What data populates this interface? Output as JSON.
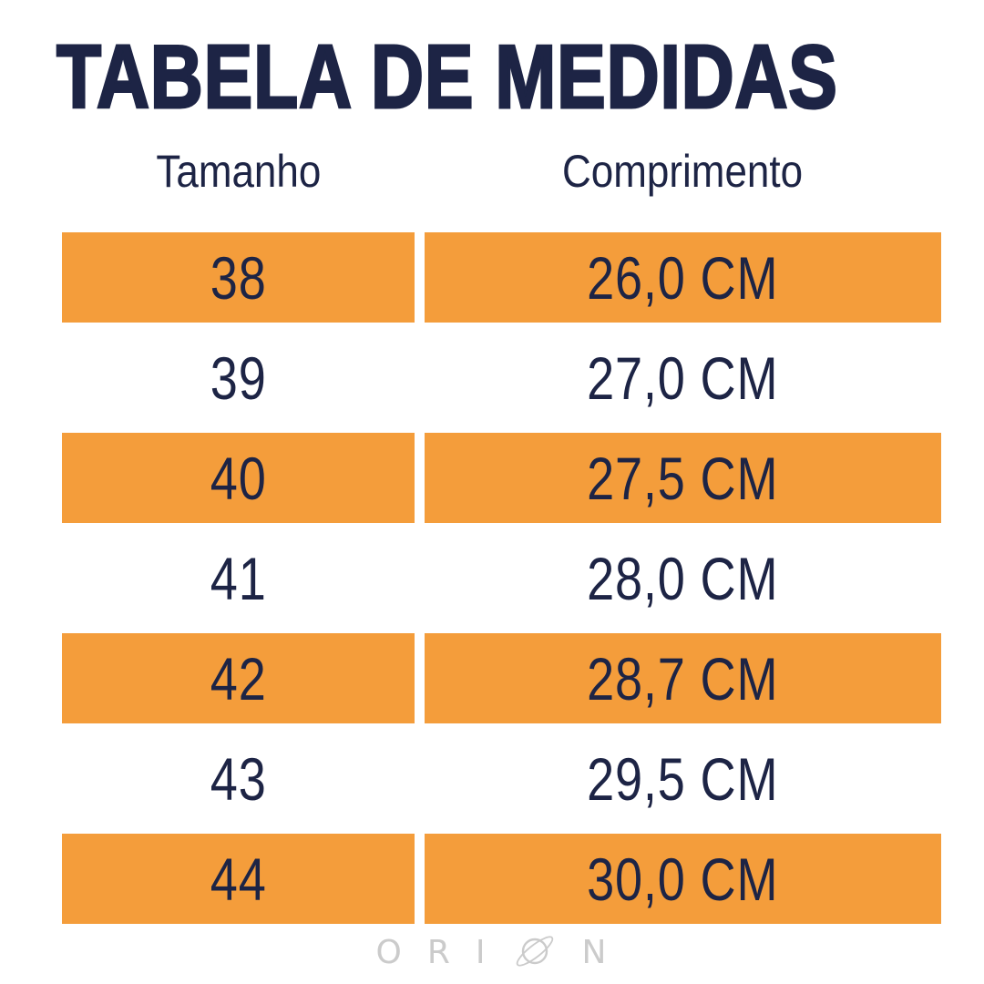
{
  "title": "TABELA DE MEDIDAS",
  "columns": {
    "size_label": "Tamanho",
    "length_label": "Comprimento"
  },
  "rows": [
    {
      "size": "38",
      "length": "26,0 CM",
      "highlight": true
    },
    {
      "size": "39",
      "length": "27,0 CM",
      "highlight": false
    },
    {
      "size": "40",
      "length": "27,5 CM",
      "highlight": true
    },
    {
      "size": "41",
      "length": "28,0 CM",
      "highlight": false
    },
    {
      "size": "42",
      "length": "28,7 CM",
      "highlight": true
    },
    {
      "size": "43",
      "length": "29,5 CM",
      "highlight": false
    },
    {
      "size": "44",
      "length": "30,0 CM",
      "highlight": true
    }
  ],
  "brand": {
    "name": "ORION",
    "letters": [
      "O",
      "R",
      "I"
    ],
    "planet_icon": "saturn-planet-icon",
    "last_letter": "N"
  },
  "colors": {
    "navy": "#1D2445",
    "accent_orange": "#F49D3B",
    "logo_gray": "#CBCBCB",
    "background": "#FFFFFF"
  },
  "chart_data": {
    "type": "table",
    "title": "TABELA DE MEDIDAS",
    "columns": [
      "Tamanho",
      "Comprimento"
    ],
    "rows": [
      [
        "38",
        "26,0 CM"
      ],
      [
        "39",
        "27,0 CM"
      ],
      [
        "40",
        "27,5 CM"
      ],
      [
        "41",
        "28,0 CM"
      ],
      [
        "42",
        "28,7 CM"
      ],
      [
        "43",
        "29,5 CM"
      ],
      [
        "44",
        "30,0 CM"
      ]
    ],
    "sizes": [
      38,
      39,
      40,
      41,
      42,
      43,
      44
    ],
    "lengths_cm": [
      26.0,
      27.0,
      27.5,
      28.0,
      28.7,
      29.5,
      30.0
    ],
    "highlighted_row_indices": [
      0,
      2,
      4,
      6
    ],
    "layout": "two-column size chart, alternating orange highlight rows"
  }
}
